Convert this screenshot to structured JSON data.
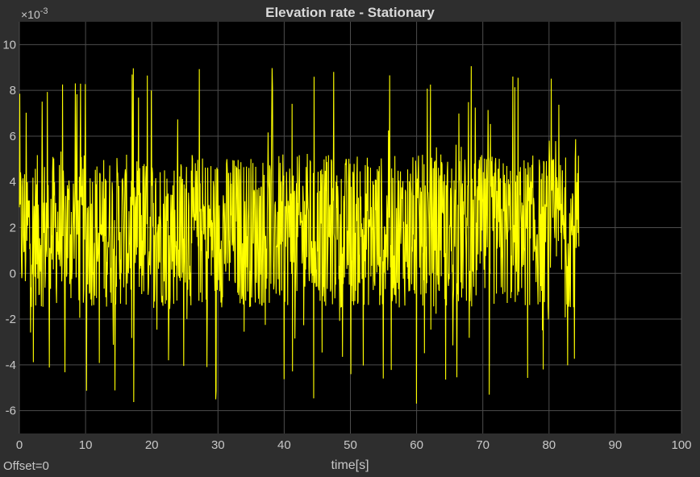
{
  "chart_data": {
    "type": "line",
    "title": "Elevation rate - Stationary",
    "xlabel": "time[s]",
    "ylabel": "",
    "xlim": [
      0,
      100
    ],
    "ylim": [
      -7,
      11
    ],
    "x_ticks": [
      0,
      10,
      20,
      30,
      40,
      50,
      60,
      70,
      80,
      90,
      100
    ],
    "y_ticks": [
      -6,
      -4,
      -2,
      0,
      2,
      4,
      6,
      8,
      10
    ],
    "y_exponent_label": "×10",
    "y_exponent_power": "-3",
    "grid": true,
    "background": "#000000",
    "series": [
      {
        "color": "#ffff00",
        "x_range": [
          0,
          84.5
        ],
        "band_low": -1.5,
        "band_high": 5.2,
        "peak_max": 9.1,
        "peak_min": -5.8
      }
    ]
  },
  "footer": {
    "offset_label": "Offset=0"
  },
  "colors": {
    "figure_background": "#2e2e2e",
    "axes_background": "#000000",
    "grid": "#4d4d4d",
    "text": "#c8c8c8",
    "trace": "#ffff00"
  }
}
